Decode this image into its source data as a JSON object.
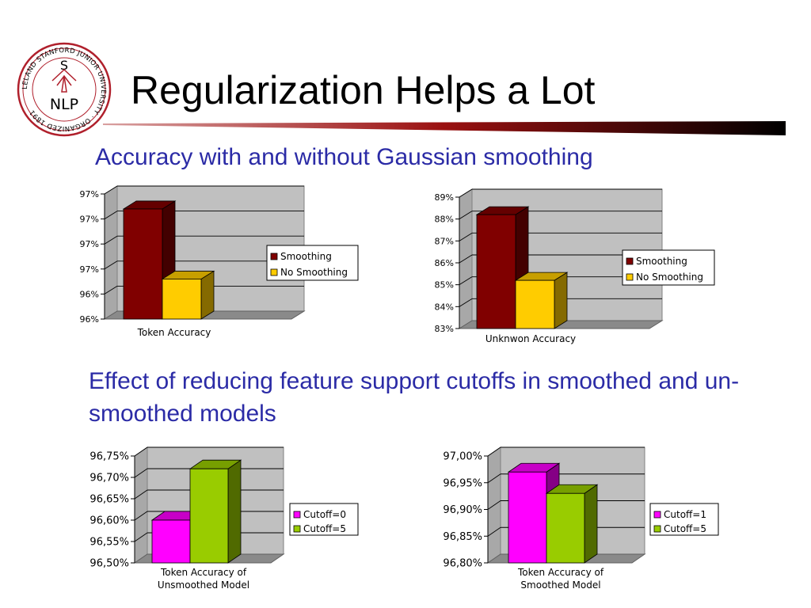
{
  "slide": {
    "title": "Regularization Helps a Lot",
    "subtitle1": "Accuracy with and without Gaussian smoothing",
    "subtitle2": "Effect of reducing feature support cutoffs in smoothed and un-smoothed models"
  },
  "logo": {
    "ring_text": "LELAND STANFORD JUNIOR UNIVERSITY · ORGANIZED 1891",
    "letter": "S",
    "acronym": "NLP",
    "color": "#b0202c"
  },
  "colors": {
    "title_text": "#000000",
    "subtitle_text": "#2b2ba6",
    "plot_background": "#c0c0c0",
    "title_rule": "#6e0000"
  },
  "chart_data": [
    {
      "type": "bar",
      "style": "3d",
      "categories": [
        "Token Accuracy"
      ],
      "series": [
        {
          "name": "Smoothing",
          "values": [
            96.88
          ],
          "color": "#800000"
        },
        {
          "name": "No Smoothing",
          "values": [
            96.32
          ],
          "color": "#ffcc00"
        }
      ],
      "ylim": [
        96.0,
        97.0
      ],
      "yticks": [
        96.0,
        96.2,
        96.4,
        96.6,
        96.8,
        97.0
      ],
      "ytick_labels": [
        "96%",
        "96%",
        "97%",
        "97%",
        "97%",
        "97%"
      ],
      "grid": true,
      "legend": "right"
    },
    {
      "type": "bar",
      "style": "3d",
      "categories": [
        "Unknwon Accuracy"
      ],
      "series": [
        {
          "name": "Smoothing",
          "values": [
            88.2
          ],
          "color": "#800000"
        },
        {
          "name": "No Smoothing",
          "values": [
            85.2
          ],
          "color": "#ffcc00"
        }
      ],
      "ylim": [
        83,
        89
      ],
      "yticks": [
        83,
        84,
        85,
        86,
        87,
        88,
        89
      ],
      "ytick_labels": [
        "83%",
        "84%",
        "85%",
        "86%",
        "87%",
        "88%",
        "89%"
      ],
      "grid": true,
      "legend": "right"
    },
    {
      "type": "bar",
      "style": "3d",
      "categories": [
        "Token Accuracy of Unsmoothed Model"
      ],
      "series": [
        {
          "name": "Cutoff=0",
          "values": [
            96.6
          ],
          "color": "#ff00ff"
        },
        {
          "name": "Cutoff=5",
          "values": [
            96.72
          ],
          "color": "#99cc00"
        }
      ],
      "ylim": [
        96.5,
        96.75
      ],
      "yticks": [
        96.5,
        96.55,
        96.6,
        96.65,
        96.7,
        96.75
      ],
      "ytick_labels": [
        "96,50%",
        "96,55%",
        "96,60%",
        "96,65%",
        "96,70%",
        "96,75%"
      ],
      "grid": true,
      "legend": "right"
    },
    {
      "type": "bar",
      "style": "3d",
      "categories": [
        "Token Accuracy of Smoothed Model"
      ],
      "series": [
        {
          "name": "Cutoff=1",
          "values": [
            96.97
          ],
          "color": "#ff00ff"
        },
        {
          "name": "Cutoff=5",
          "values": [
            96.93
          ],
          "color": "#99cc00"
        }
      ],
      "ylim": [
        96.8,
        97.0
      ],
      "yticks": [
        96.8,
        96.85,
        96.9,
        96.95,
        97.0
      ],
      "ytick_labels": [
        "96,80%",
        "96,85%",
        "96,90%",
        "96,95%",
        "97,00%"
      ],
      "grid": true,
      "legend": "right"
    }
  ]
}
